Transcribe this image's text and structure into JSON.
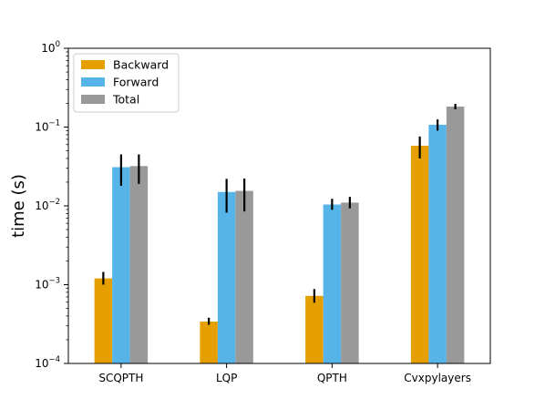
{
  "chart_data": {
    "type": "bar",
    "title": "",
    "xlabel": "",
    "ylabel": "time (s)",
    "yscale": "log",
    "ylim": [
      0.0001,
      1
    ],
    "y_ticks": [
      {
        "value": 0.0001,
        "base": "10",
        "exp": "−4"
      },
      {
        "value": 0.001,
        "base": "10",
        "exp": "−3"
      },
      {
        "value": 0.01,
        "base": "10",
        "exp": "−2"
      },
      {
        "value": 0.1,
        "base": "10",
        "exp": "−1"
      },
      {
        "value": 1,
        "base": "10",
        "exp": "0"
      }
    ],
    "grid": false,
    "legend_position": "top-left",
    "categories": [
      "SCQPTH",
      "LQP",
      "QPTH",
      "Cvxpylayers"
    ],
    "series": [
      {
        "name": "Backward",
        "color": "#E69F00",
        "values": [
          0.0012,
          0.00034,
          0.00072,
          0.058
        ],
        "err_low": [
          0.001,
          0.00031,
          0.00059,
          0.04
        ],
        "err_high": [
          0.00145,
          0.00038,
          0.00088,
          0.076
        ]
      },
      {
        "name": "Forward",
        "color": "#56B4E9",
        "values": [
          0.031,
          0.015,
          0.0104,
          0.107
        ],
        "err_low": [
          0.018,
          0.0082,
          0.0089,
          0.09
        ],
        "err_high": [
          0.045,
          0.022,
          0.0123,
          0.125
        ]
      },
      {
        "name": "Total",
        "color": "#999999",
        "values": [
          0.032,
          0.0155,
          0.011,
          0.182
        ],
        "err_low": [
          0.019,
          0.0085,
          0.0093,
          0.168
        ],
        "err_high": [
          0.045,
          0.0222,
          0.013,
          0.197
        ]
      }
    ]
  }
}
